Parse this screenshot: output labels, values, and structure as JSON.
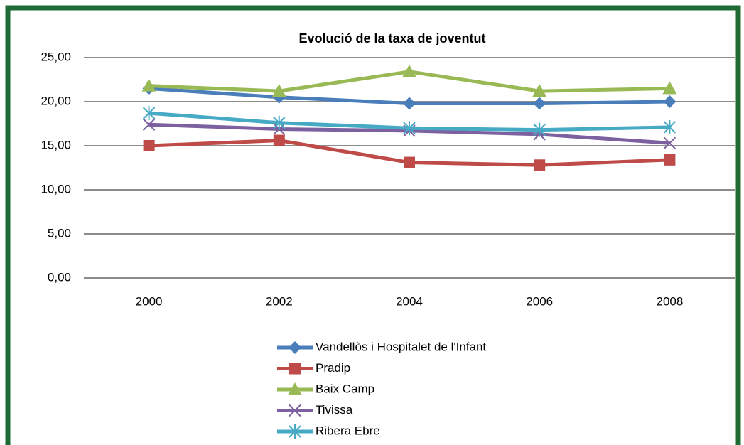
{
  "chart_data": {
    "type": "line",
    "title": "Evolució de la taxa de joventut",
    "categories": [
      "2000",
      "2002",
      "2004",
      "2006",
      "2008"
    ],
    "series": [
      {
        "name": "Vandellòs i Hospitalet de l'Infant",
        "color": "#4a7ebb",
        "marker": "diamond",
        "values": [
          21.5,
          20.5,
          19.8,
          19.8,
          20.0
        ]
      },
      {
        "name": "Pradip",
        "color": "#be4b48",
        "marker": "square",
        "values": [
          15.0,
          15.6,
          13.1,
          12.8,
          13.4
        ]
      },
      {
        "name": "Baix Camp",
        "color": "#98b954",
        "marker": "triangle",
        "values": [
          21.8,
          21.2,
          23.4,
          21.2,
          21.5
        ]
      },
      {
        "name": "Tivissa",
        "color": "#7d60a0",
        "marker": "x",
        "values": [
          17.4,
          16.9,
          16.7,
          16.3,
          15.3
        ]
      },
      {
        "name": "Ribera Ebre",
        "color": "#46aac5",
        "marker": "star",
        "values": [
          18.7,
          17.6,
          17.0,
          16.8,
          17.1
        ]
      }
    ],
    "ylim": [
      0,
      25
    ],
    "yticks": [
      {
        "value": 0,
        "label": "0,00"
      },
      {
        "value": 5,
        "label": "5,00"
      },
      {
        "value": 10,
        "label": "10,00"
      },
      {
        "value": 15,
        "label": "15,00"
      },
      {
        "value": 20,
        "label": "20,00"
      },
      {
        "value": 25,
        "label": "25,00"
      }
    ],
    "grid": true,
    "legend": "bottom"
  }
}
